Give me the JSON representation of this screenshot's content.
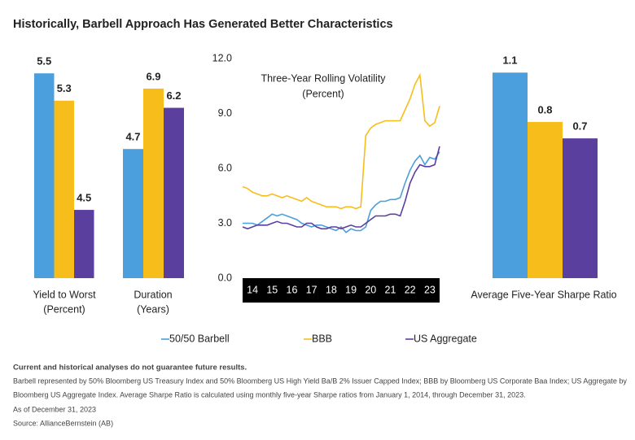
{
  "title": "Historically, Barbell Approach Has Generated Better Characteristics",
  "chart_data": [
    {
      "type": "bar",
      "xlabel": [
        "Yield to Worst",
        "(Percent)"
      ],
      "values": [
        5.5,
        5.3,
        4.5
      ],
      "colors": [
        "#4a9fdc",
        "#f7bd1b",
        "#5b3f9f"
      ],
      "ylim": [
        4.0,
        5.65
      ]
    },
    {
      "type": "bar",
      "xlabel": [
        "Duration",
        "(Years)"
      ],
      "values": [
        4.7,
        6.9,
        6.2
      ],
      "colors": [
        "#4a9fdc",
        "#f7bd1b",
        "#5b3f9f"
      ],
      "ylim": [
        0,
        8.2
      ]
    },
    {
      "type": "line",
      "annotation": [
        "Three-Year Rolling Volatility",
        "(Percent)"
      ],
      "x": [
        13.5,
        13.75,
        14,
        14.25,
        14.5,
        14.75,
        15,
        15.25,
        15.5,
        15.75,
        16,
        16.25,
        16.5,
        16.75,
        17,
        17.25,
        17.5,
        17.75,
        18,
        18.25,
        18.5,
        18.75,
        19,
        19.25,
        19.5,
        19.75,
        20,
        20.25,
        20.5,
        20.75,
        21,
        21.25,
        21.5,
        21.75,
        22,
        22.25,
        22.5,
        22.75,
        23,
        23.25,
        23.5
      ],
      "xlim": [
        13.5,
        23.5
      ],
      "xticks": [
        14,
        15,
        16,
        17,
        18,
        19,
        20,
        21,
        22,
        23
      ],
      "ylim": [
        0,
        12
      ],
      "yticks": [
        {
          "value": 0,
          "label": "0.0"
        },
        {
          "value": 3,
          "label": "3.0"
        },
        {
          "value": 6,
          "label": "6.0"
        },
        {
          "value": 9,
          "label": "9.0"
        },
        {
          "value": 12,
          "label": "12.0"
        }
      ],
      "series": [
        {
          "name": "50/50 Barbell",
          "color": "#4a9fdc",
          "values": [
            3.0,
            3.0,
            3.0,
            2.9,
            3.1,
            3.3,
            3.5,
            3.4,
            3.5,
            3.4,
            3.3,
            3.2,
            3.0,
            2.9,
            2.8,
            2.9,
            2.9,
            2.8,
            2.7,
            2.6,
            2.8,
            2.5,
            2.7,
            2.6,
            2.6,
            2.8,
            3.7,
            4.0,
            4.2,
            4.2,
            4.3,
            4.3,
            4.4,
            5.2,
            5.9,
            6.4,
            6.7,
            6.2,
            6.6,
            6.5,
            6.9
          ]
        },
        {
          "name": "BBB",
          "color": "#f7bd1b",
          "values": [
            5.0,
            4.9,
            4.7,
            4.6,
            4.5,
            4.5,
            4.6,
            4.5,
            4.4,
            4.5,
            4.4,
            4.3,
            4.2,
            4.4,
            4.2,
            4.1,
            4.0,
            3.9,
            3.9,
            3.9,
            3.8,
            3.9,
            3.9,
            3.8,
            3.9,
            7.8,
            8.2,
            8.4,
            8.5,
            8.6,
            8.6,
            8.6,
            8.6,
            9.2,
            9.8,
            10.6,
            11.1,
            8.6,
            8.3,
            8.5,
            9.4
          ]
        },
        {
          "name": "US Aggregate",
          "color": "#5b3f9f",
          "values": [
            2.8,
            2.7,
            2.8,
            2.9,
            2.9,
            2.9,
            3.0,
            3.1,
            3.0,
            3.0,
            2.9,
            2.8,
            2.8,
            3.0,
            3.0,
            2.8,
            2.7,
            2.7,
            2.8,
            2.8,
            2.7,
            2.8,
            2.9,
            2.8,
            2.8,
            3.0,
            3.2,
            3.4,
            3.4,
            3.4,
            3.5,
            3.5,
            3.4,
            4.2,
            5.2,
            5.8,
            6.2,
            6.1,
            6.1,
            6.2,
            7.2
          ]
        }
      ]
    },
    {
      "type": "bar",
      "xlabel": [
        "Average Five-Year Sharpe Ratio"
      ],
      "values": [
        1.1,
        0.8,
        0.7
      ],
      "colors": [
        "#4a9fdc",
        "#f7bd1b",
        "#5b3f9f"
      ],
      "ylim": [
        -0.15,
        1.22
      ]
    }
  ],
  "notes": [
    "Current and historical analyses do not guarantee future results.",
    "Barbell represented by 50% Bloomberg US Treasury Index and 50% Bloomberg US High Yield Ba/B 2% Issuer Capped Index; BBB by Bloomberg US Corporate Baa Index; US Aggregate by",
    "Bloomberg US Aggregate Index. Average Sharpe Ratio is calculated using monthly five-year Sharpe ratios from January 1, 2014, through December 31, 2023.",
    "As of December 31, 2023",
    "Source: AllianceBernstein (AB)"
  ]
}
